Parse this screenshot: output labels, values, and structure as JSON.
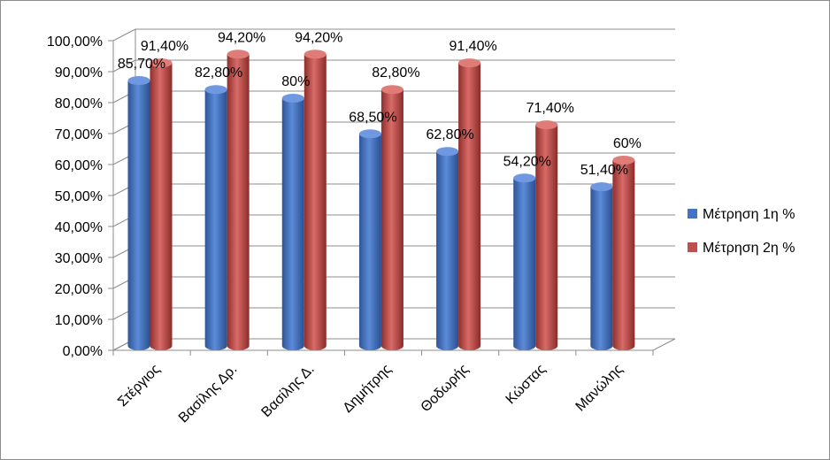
{
  "chart_data": {
    "type": "bar",
    "style": "3d-cylinder",
    "categories": [
      "Στέργιος",
      "Βασίλης Δρ.",
      "Βασίλης Δ.",
      "Δημήτρης",
      "Θοδωρής",
      "Κώστας",
      "Μανώλης"
    ],
    "series": [
      {
        "name": "Μέτρηση 1η %",
        "color": "#4472C4",
        "values": [
          85.7,
          82.8,
          80,
          68.5,
          62.8,
          54.2,
          51.4
        ],
        "labels": [
          "85,70%",
          "82,80%",
          "80%",
          "68,50%",
          "62,80%",
          "54,20%",
          "51,40%"
        ]
      },
      {
        "name": "Μέτρηση 2η %",
        "color": "#C0504D",
        "values": [
          91.4,
          94.2,
          94.2,
          82.8,
          91.4,
          71.4,
          60
        ],
        "labels": [
          "91,40%",
          "94,20%",
          "94,20%",
          "82,80%",
          "91,40%",
          "71,40%",
          "60%"
        ]
      }
    ],
    "y_ticks": [
      "0,00%",
      "10,00%",
      "20,00%",
      "30,00%",
      "40,00%",
      "50,00%",
      "60,00%",
      "70,00%",
      "80,00%",
      "90,00%",
      "100,00%"
    ],
    "ylim": [
      0,
      100
    ],
    "grid": true,
    "legend_position": "right",
    "title": "",
    "xlabel": "",
    "ylabel": ""
  }
}
